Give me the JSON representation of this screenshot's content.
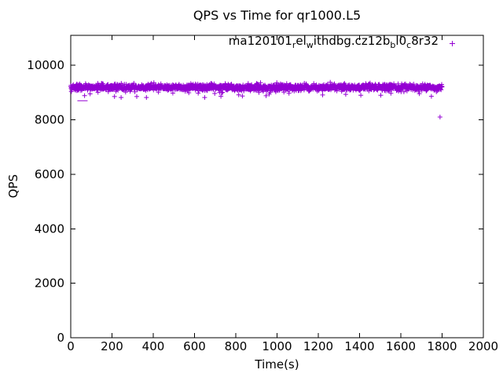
{
  "title": "QPS vs Time for qr1000.L5",
  "axes": {
    "xlabel": "Time(s)",
    "ylabel": "QPS",
    "x_tick_labels": [
      "0",
      "200",
      "400",
      "600",
      "800",
      "1000",
      "1200",
      "1400",
      "1600",
      "1800",
      "2000"
    ],
    "y_tick_labels": [
      "0",
      "2000",
      "4000",
      "6000",
      "8000",
      "10000"
    ]
  },
  "legend": {
    "plain_text": "ma120101_rel_withdbg.cz12b_bl0_c8r32",
    "segments": [
      {
        "text": "ma120101",
        "sub": false
      },
      {
        "text": "r",
        "sub": true
      },
      {
        "text": "el",
        "sub": false
      },
      {
        "text": "w",
        "sub": true
      },
      {
        "text": "ithdbg.cz12b",
        "sub": false
      },
      {
        "text": "b",
        "sub": true
      },
      {
        "text": "l0",
        "sub": false
      },
      {
        "text": "c",
        "sub": true
      },
      {
        "text": "8r32",
        "sub": false
      }
    ],
    "marker": "plus",
    "color": "#9400D3"
  },
  "chart_data": {
    "type": "scatter",
    "title": "QPS vs Time for qr1000.L5",
    "xlabel": "Time(s)",
    "ylabel": "QPS",
    "xlim": [
      0,
      2000
    ],
    "ylim": [
      0,
      11100
    ],
    "x_ticks": [
      0,
      200,
      400,
      600,
      800,
      1000,
      1200,
      1400,
      1600,
      1800,
      2000
    ],
    "y_ticks": [
      0,
      2000,
      4000,
      6000,
      8000,
      10000
    ],
    "grid": false,
    "frame": true,
    "mirrored_ticks": true,
    "legend_position": "top-right-inside",
    "axis_color": "#000000",
    "series": [
      {
        "name": "ma120101_rel_withdbg.cz12b_bl0_c8r32",
        "marker": "plus",
        "color": "#9400D3",
        "band": {
          "x_start": 0,
          "x_end": 1800,
          "sample_step_s": 1,
          "mean_qps": 9190,
          "std_qps": 60,
          "min_qps": 8820,
          "max_qps": 9435,
          "dip_probability": 0.02,
          "dip_range": [
            120,
            380
          ],
          "seed": 42
        },
        "outliers": [
          {
            "t": 57,
            "qps": 8700,
            "marker": "dash"
          },
          {
            "t": 1790,
            "qps": 8100,
            "marker": "plus"
          }
        ]
      }
    ]
  }
}
